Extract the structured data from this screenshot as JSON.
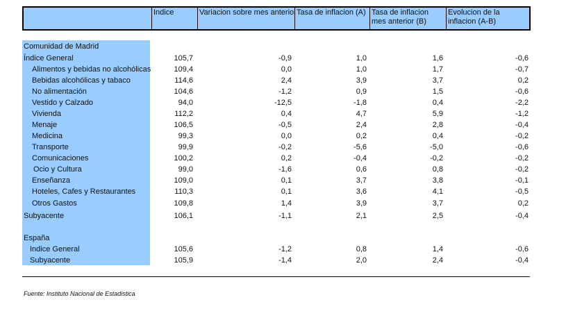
{
  "header": {
    "columns": [
      "Indice",
      "Variacion sobre mes anterior",
      "Tasa de inflacion (A)",
      "Tasa de inflacion mes anterior (B)",
      "Evolucion de la inflacion (A-B)"
    ]
  },
  "rows": [
    {
      "label": "Comunidad de Madrid",
      "level": 0,
      "values": []
    },
    {
      "label": "Índice General",
      "level": 0,
      "values": [
        "105,7",
        "-0,9",
        "1,0",
        "1,6",
        "-0,6"
      ]
    },
    {
      "label": "Alimentos y bebidas no alcohólicas",
      "level": 1,
      "values": [
        "109,4",
        "0,0",
        "1,0",
        "1,7",
        "-0,7"
      ]
    },
    {
      "label": "Bebidas alcohólicas y tabaco",
      "level": 1,
      "values": [
        "114,6",
        "2,4",
        "3,9",
        "3,7",
        "0,2"
      ]
    },
    {
      "label": "No alimentación",
      "level": 1,
      "values": [
        "104,6",
        "-1,2",
        "0,9",
        "1,5",
        "-0,6"
      ]
    },
    {
      "label": "Vestido y Calzado",
      "level": 1,
      "values": [
        "94,0",
        "-12,5",
        "-1,8",
        "0,4",
        "-2,2"
      ]
    },
    {
      "label": "Vivienda",
      "level": 1,
      "values": [
        "112,2",
        "0,4",
        "4,7",
        "5,9",
        "-1,2"
      ]
    },
    {
      "label": "Menaje",
      "level": 1,
      "values": [
        "106,5",
        "-0,5",
        "2,4",
        "2,8",
        "-0,4"
      ]
    },
    {
      "label": "Medicina",
      "level": 1,
      "values": [
        "99,3",
        "0,0",
        "0,2",
        "0,4",
        "-0,2"
      ]
    },
    {
      "label": "Transporte",
      "level": 1,
      "values": [
        "99,9",
        "-0,2",
        "-5,6",
        "-5,0",
        "-0,6"
      ]
    },
    {
      "label": "Comunicaciones",
      "level": 1,
      "values": [
        "100,2",
        "0,2",
        "-0,4",
        "-0,2",
        "-0,2"
      ]
    },
    {
      "label": "Ocio y Cultura",
      "level": 2,
      "values": [
        "99,0",
        "-1,6",
        "0,6",
        "0,8",
        "-0,2"
      ]
    },
    {
      "label": "Enseñanza",
      "level": 1,
      "values": [
        "109,0",
        "0,1",
        "3,7",
        "3,8",
        "-0,1"
      ]
    },
    {
      "label": "Hoteles, Cafes y Restaurantes",
      "level": 1,
      "values": [
        "110,3",
        "0,1",
        "3,6",
        "4,1",
        "-0,5"
      ]
    },
    {
      "label": "Otros Gastos",
      "level": 1,
      "values": [
        "109,8",
        "1,4",
        "3,9",
        "3,7",
        "0,2"
      ]
    },
    {
      "label": "Subyacente",
      "level": 0,
      "values": [
        "106,1",
        "-1,1",
        "2,1",
        "2,5",
        "-0,4"
      ]
    },
    {
      "label": "España",
      "level": 0,
      "values": []
    },
    {
      "label": "Indice General",
      "level": 3,
      "values": [
        "105,6",
        "-1,2",
        "0,8",
        "1,4",
        "-0,6"
      ]
    },
    {
      "label": "Subyacente",
      "level": 3,
      "values": [
        "105,9",
        "-1,4",
        "2,0",
        "2,4",
        "-0,4"
      ]
    }
  ],
  "source": "Fuente: Instituto Nacional de Estadistica"
}
